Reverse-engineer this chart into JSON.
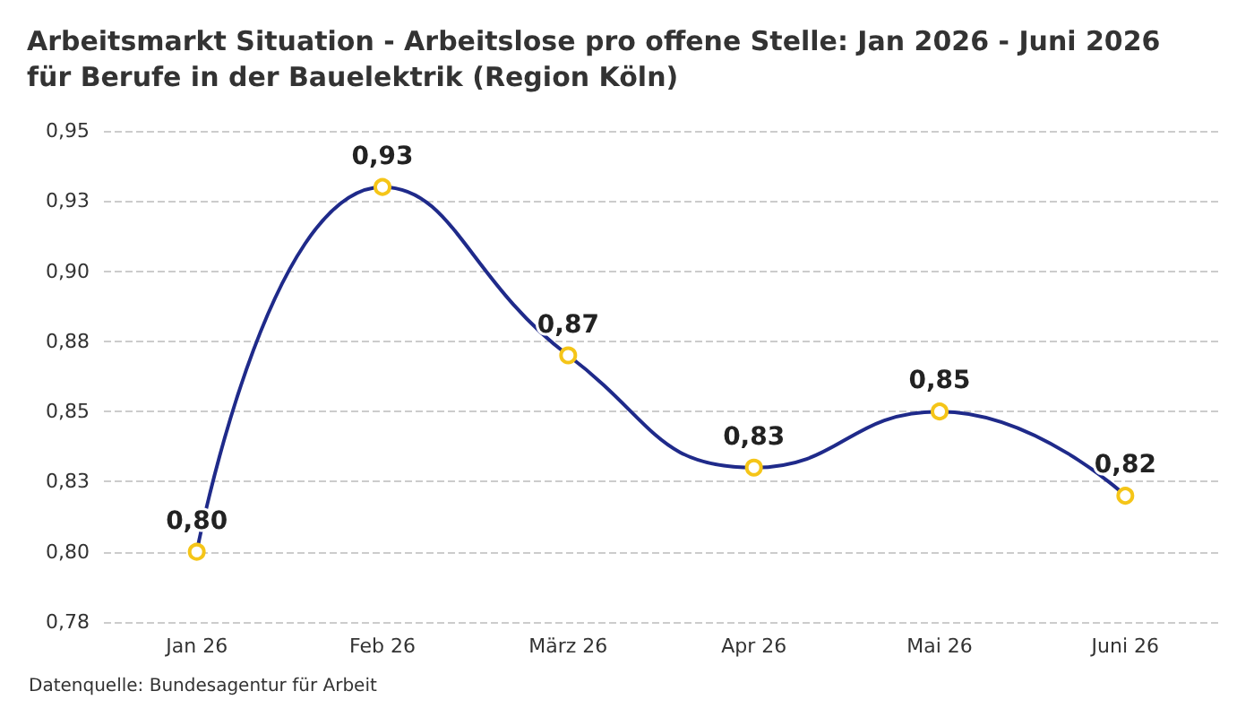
{
  "chart_data": {
    "type": "line",
    "title": "Arbeitsmarkt Situation - Arbeitslose pro offene Stelle: Jan 2026 - Juni 2026 für Berufe in der Bauelektrik (Region Köln)",
    "categories": [
      "Jan 26",
      "Feb 26",
      "März 26",
      "Apr 26",
      "Mai 26",
      "Juni 26"
    ],
    "series": [
      {
        "color": "#1f2a8a",
        "values": [
          0.8,
          0.93,
          0.87,
          0.83,
          0.85,
          0.82
        ],
        "value_labels": [
          "0,80",
          "0,93",
          "0,87",
          "0,83",
          "0,85",
          "0,82"
        ]
      }
    ],
    "ylim": [
      0.775,
      0.95
    ],
    "yticks": [
      {
        "value": 0.775,
        "label": "0,78"
      },
      {
        "value": 0.8,
        "label": "0,80"
      },
      {
        "value": 0.825,
        "label": "0,83"
      },
      {
        "value": 0.85,
        "label": "0,85"
      },
      {
        "value": 0.875,
        "label": "0,88"
      },
      {
        "value": 0.9,
        "label": "0,90"
      },
      {
        "value": 0.925,
        "label": "0,93"
      },
      {
        "value": 0.95,
        "label": "0,95"
      }
    ],
    "grid": "y",
    "marker": "circle",
    "line_style": "solid",
    "annotations": [
      "Datenquelle: Bundesagentur für Arbeit"
    ]
  }
}
